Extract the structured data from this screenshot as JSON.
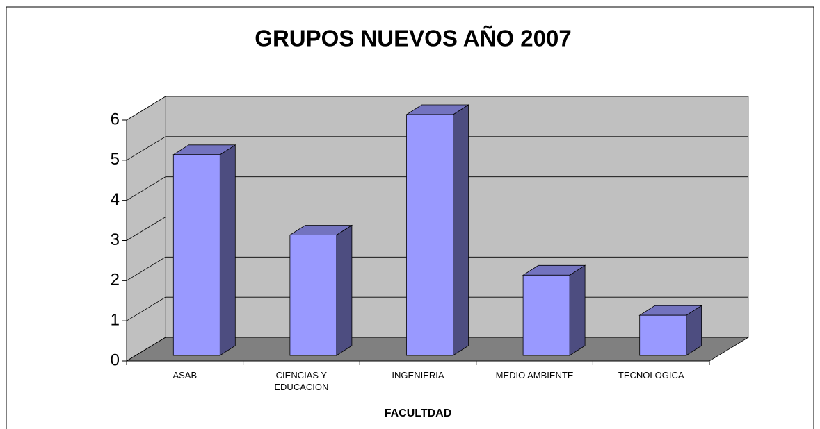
{
  "chart_data": {
    "type": "bar3d",
    "title": "GRUPOS NUEVOS AÑO 2007",
    "x_label": "FACULTDAD",
    "categories": [
      "ASAB",
      "CIENCIAS Y EDUCACION",
      "INGENIERIA",
      "MEDIO AMBIENTE",
      "TECNOLOGICA"
    ],
    "values": [
      5,
      3,
      6,
      2,
      1
    ],
    "color": "#9999ff",
    "ylim": [
      0,
      6
    ],
    "yticks": [
      0,
      1,
      2,
      3,
      4,
      5,
      6
    ],
    "grid": true
  }
}
